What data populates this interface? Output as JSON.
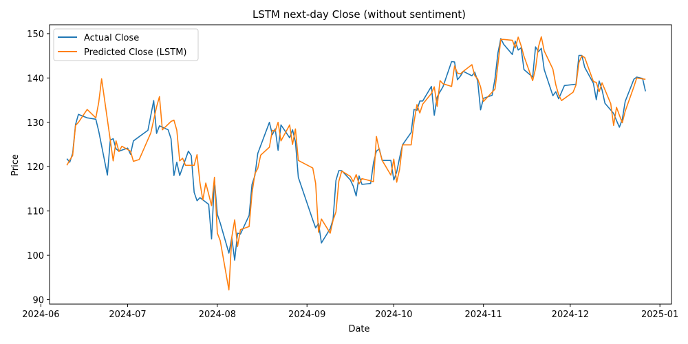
{
  "chart_data": {
    "type": "line",
    "title": "LSTM next-day Close (without sentiment)",
    "xlabel": "Date",
    "ylabel": "Price",
    "x_axis_type": "date",
    "xlim": [
      "2024-06-04",
      "2025-01-05"
    ],
    "ylim": [
      89,
      152
    ],
    "grid": false,
    "legend_position": "top-left",
    "x_tick_labels": [
      "2024-06",
      "2024-07",
      "2024-08",
      "2024-09",
      "2024-10",
      "2024-11",
      "2024-12",
      "2025-01"
    ],
    "x_tick_dates": [
      "2024-06-01",
      "2024-07-01",
      "2024-08-01",
      "2024-09-01",
      "2024-10-01",
      "2024-11-01",
      "2024-12-01",
      "2025-01-01"
    ],
    "y_ticks": [
      90,
      100,
      110,
      120,
      130,
      140,
      150
    ],
    "series": [
      {
        "name": "Actual Close",
        "color": "#1f77b4",
        "points": [
          [
            "2024-06-10",
            121.8
          ],
          [
            "2024-06-11",
            121.0
          ],
          [
            "2024-06-12",
            123.0
          ],
          [
            "2024-06-13",
            129.5
          ],
          [
            "2024-06-14",
            131.8
          ],
          [
            "2024-06-17",
            131.0
          ],
          [
            "2024-06-20",
            130.7
          ],
          [
            "2024-06-21",
            128.0
          ],
          [
            "2024-06-24",
            118.1
          ],
          [
            "2024-06-25",
            126.0
          ],
          [
            "2024-06-26",
            126.3
          ],
          [
            "2024-06-27",
            124.0
          ],
          [
            "2024-06-28",
            123.5
          ],
          [
            "2024-07-01",
            124.2
          ],
          [
            "2024-07-02",
            122.8
          ],
          [
            "2024-07-03",
            125.8
          ],
          [
            "2024-07-08",
            128.2
          ],
          [
            "2024-07-10",
            134.9
          ],
          [
            "2024-07-11",
            127.5
          ],
          [
            "2024-07-12",
            129.2
          ],
          [
            "2024-07-15",
            128.3
          ],
          [
            "2024-07-16",
            126.3
          ],
          [
            "2024-07-17",
            118.0
          ],
          [
            "2024-07-18",
            121.0
          ],
          [
            "2024-07-19",
            118.0
          ],
          [
            "2024-07-22",
            123.5
          ],
          [
            "2024-07-23",
            122.5
          ],
          [
            "2024-07-24",
            114.2
          ],
          [
            "2024-07-25",
            112.3
          ],
          [
            "2024-07-26",
            113.0
          ],
          [
            "2024-07-29",
            111.5
          ],
          [
            "2024-07-30",
            103.7
          ],
          [
            "2024-07-31",
            117.0
          ],
          [
            "2024-08-01",
            109.2
          ],
          [
            "2024-08-02",
            107.3
          ],
          [
            "2024-08-05",
            100.5
          ],
          [
            "2024-08-06",
            104.0
          ],
          [
            "2024-08-07",
            98.9
          ],
          [
            "2024-08-08",
            105.0
          ],
          [
            "2024-08-09",
            104.8
          ],
          [
            "2024-08-12",
            109.0
          ],
          [
            "2024-08-13",
            116.0
          ],
          [
            "2024-08-14",
            118.0
          ],
          [
            "2024-08-15",
            123.0
          ],
          [
            "2024-08-19",
            130.0
          ],
          [
            "2024-08-20",
            127.2
          ],
          [
            "2024-08-21",
            128.5
          ],
          [
            "2024-08-22",
            123.7
          ],
          [
            "2024-08-23",
            129.4
          ],
          [
            "2024-08-26",
            126.5
          ],
          [
            "2024-08-27",
            128.3
          ],
          [
            "2024-08-28",
            125.6
          ],
          [
            "2024-08-29",
            117.6
          ],
          [
            "2024-09-03",
            108.0
          ],
          [
            "2024-09-04",
            106.2
          ],
          [
            "2024-09-05",
            107.2
          ],
          [
            "2024-09-06",
            102.8
          ],
          [
            "2024-09-09",
            106.0
          ],
          [
            "2024-09-10",
            108.1
          ],
          [
            "2024-09-11",
            116.9
          ],
          [
            "2024-09-12",
            119.1
          ],
          [
            "2024-09-13",
            119.1
          ],
          [
            "2024-09-16",
            117.0
          ],
          [
            "2024-09-17",
            115.6
          ],
          [
            "2024-09-18",
            113.4
          ],
          [
            "2024-09-19",
            117.9
          ],
          [
            "2024-09-20",
            116.0
          ],
          [
            "2024-09-23",
            116.2
          ],
          [
            "2024-09-24",
            120.9
          ],
          [
            "2024-09-25",
            123.5
          ],
          [
            "2024-09-26",
            124.0
          ],
          [
            "2024-09-27",
            121.4
          ],
          [
            "2024-09-30",
            121.4
          ],
          [
            "2024-10-01",
            117.0
          ],
          [
            "2024-10-02",
            118.8
          ],
          [
            "2024-10-03",
            122.0
          ],
          [
            "2024-10-04",
            124.9
          ],
          [
            "2024-10-07",
            127.7
          ],
          [
            "2024-10-08",
            132.9
          ],
          [
            "2024-10-09",
            132.7
          ],
          [
            "2024-10-10",
            134.8
          ],
          [
            "2024-10-11",
            134.8
          ],
          [
            "2024-10-14",
            138.1
          ],
          [
            "2024-10-15",
            131.6
          ],
          [
            "2024-10-16",
            135.7
          ],
          [
            "2024-10-17",
            136.9
          ],
          [
            "2024-10-18",
            138.0
          ],
          [
            "2024-10-21",
            143.7
          ],
          [
            "2024-10-22",
            143.6
          ],
          [
            "2024-10-23",
            139.6
          ],
          [
            "2024-10-24",
            140.4
          ],
          [
            "2024-10-25",
            141.5
          ],
          [
            "2024-10-28",
            140.5
          ],
          [
            "2024-10-29",
            141.3
          ],
          [
            "2024-10-30",
            139.3
          ],
          [
            "2024-10-31",
            132.8
          ],
          [
            "2024-11-01",
            135.4
          ],
          [
            "2024-11-04",
            136.1
          ],
          [
            "2024-11-05",
            139.9
          ],
          [
            "2024-11-06",
            145.6
          ],
          [
            "2024-11-07",
            148.9
          ],
          [
            "2024-11-08",
            147.6
          ],
          [
            "2024-11-11",
            145.3
          ],
          [
            "2024-11-12",
            148.3
          ],
          [
            "2024-11-13",
            146.3
          ],
          [
            "2024-11-14",
            146.8
          ],
          [
            "2024-11-15",
            141.9
          ],
          [
            "2024-11-18",
            140.2
          ],
          [
            "2024-11-19",
            147.0
          ],
          [
            "2024-11-20",
            145.9
          ],
          [
            "2024-11-21",
            146.7
          ],
          [
            "2024-11-22",
            141.9
          ],
          [
            "2024-11-25",
            136.0
          ],
          [
            "2024-11-26",
            136.9
          ],
          [
            "2024-11-27",
            135.3
          ],
          [
            "2024-11-29",
            138.3
          ],
          [
            "2024-12-03",
            138.6
          ],
          [
            "2024-12-04",
            145.1
          ],
          [
            "2024-12-05",
            145.1
          ],
          [
            "2024-12-06",
            142.4
          ],
          [
            "2024-12-09",
            138.8
          ],
          [
            "2024-12-10",
            135.1
          ],
          [
            "2024-12-11",
            139.3
          ],
          [
            "2024-12-12",
            137.3
          ],
          [
            "2024-12-13",
            134.3
          ],
          [
            "2024-12-16",
            132.0
          ],
          [
            "2024-12-17",
            130.4
          ],
          [
            "2024-12-18",
            128.9
          ],
          [
            "2024-12-19",
            130.7
          ],
          [
            "2024-12-20",
            134.7
          ],
          [
            "2024-12-23",
            139.7
          ],
          [
            "2024-12-24",
            140.2
          ],
          [
            "2024-12-26",
            139.9
          ],
          [
            "2024-12-27",
            137.0
          ]
        ]
      },
      {
        "name": "Predicted Close (LSTM)",
        "color": "#ff7f0e",
        "points": [
          [
            "2024-06-10",
            120.3
          ],
          [
            "2024-06-11",
            121.5
          ],
          [
            "2024-06-12",
            122.5
          ],
          [
            "2024-06-13",
            129.3
          ],
          [
            "2024-06-14",
            130.0
          ],
          [
            "2024-06-17",
            132.9
          ],
          [
            "2024-06-20",
            131.0
          ],
          [
            "2024-06-21",
            134.5
          ],
          [
            "2024-06-22",
            139.8
          ],
          [
            "2024-06-25",
            126.0
          ],
          [
            "2024-06-26",
            121.3
          ],
          [
            "2024-06-27",
            125.8
          ],
          [
            "2024-06-28",
            123.4
          ],
          [
            "2024-06-29",
            124.6
          ],
          [
            "2024-07-02",
            123.5
          ],
          [
            "2024-07-03",
            121.2
          ],
          [
            "2024-07-05",
            121.6
          ],
          [
            "2024-07-09",
            127.6
          ],
          [
            "2024-07-11",
            133.5
          ],
          [
            "2024-07-12",
            135.8
          ],
          [
            "2024-07-13",
            128.3
          ],
          [
            "2024-07-16",
            130.2
          ],
          [
            "2024-07-17",
            130.5
          ],
          [
            "2024-07-18",
            128.2
          ],
          [
            "2024-07-19",
            121.3
          ],
          [
            "2024-07-20",
            121.9
          ],
          [
            "2024-07-21",
            120.3
          ],
          [
            "2024-07-24",
            120.3
          ],
          [
            "2024-07-25",
            122.7
          ],
          [
            "2024-07-26",
            116.4
          ],
          [
            "2024-07-27",
            112.5
          ],
          [
            "2024-07-28",
            116.3
          ],
          [
            "2024-07-29",
            113.8
          ],
          [
            "2024-07-30",
            111.2
          ],
          [
            "2024-07-31",
            117.6
          ],
          [
            "2024-08-01",
            105.0
          ],
          [
            "2024-08-02",
            103.3
          ],
          [
            "2024-08-05",
            92.2
          ],
          [
            "2024-08-06",
            104.1
          ],
          [
            "2024-08-07",
            108.0
          ],
          [
            "2024-08-08",
            102.0
          ],
          [
            "2024-08-09",
            105.8
          ],
          [
            "2024-08-12",
            106.5
          ],
          [
            "2024-08-13",
            114.0
          ],
          [
            "2024-08-14",
            118.4
          ],
          [
            "2024-08-15",
            119.6
          ],
          [
            "2024-08-16",
            122.6
          ],
          [
            "2024-08-19",
            124.4
          ],
          [
            "2024-08-20",
            128.2
          ],
          [
            "2024-08-21",
            128.0
          ],
          [
            "2024-08-22",
            130.0
          ],
          [
            "2024-08-23",
            125.8
          ],
          [
            "2024-08-26",
            129.4
          ],
          [
            "2024-08-27",
            125.0
          ],
          [
            "2024-08-28",
            128.5
          ],
          [
            "2024-08-29",
            121.4
          ],
          [
            "2024-09-03",
            119.7
          ],
          [
            "2024-09-04",
            116.2
          ],
          [
            "2024-09-05",
            105.2
          ],
          [
            "2024-09-06",
            108.2
          ],
          [
            "2024-09-09",
            105.0
          ],
          [
            "2024-09-10",
            107.9
          ],
          [
            "2024-09-11",
            109.8
          ],
          [
            "2024-09-12",
            116.7
          ],
          [
            "2024-09-13",
            119.0
          ],
          [
            "2024-09-16",
            117.8
          ],
          [
            "2024-09-17",
            116.6
          ],
          [
            "2024-09-18",
            118.2
          ],
          [
            "2024-09-19",
            116.1
          ],
          [
            "2024-09-20",
            117.3
          ],
          [
            "2024-09-23",
            116.8
          ],
          [
            "2024-09-24",
            116.6
          ],
          [
            "2024-09-25",
            126.8
          ],
          [
            "2024-09-26",
            123.8
          ],
          [
            "2024-09-27",
            121.4
          ],
          [
            "2024-09-30",
            118.1
          ],
          [
            "2024-10-01",
            121.7
          ],
          [
            "2024-10-02",
            116.5
          ],
          [
            "2024-10-03",
            119.4
          ],
          [
            "2024-10-04",
            124.9
          ],
          [
            "2024-10-07",
            124.9
          ],
          [
            "2024-10-08",
            130.1
          ],
          [
            "2024-10-09",
            134.0
          ],
          [
            "2024-10-10",
            132.1
          ],
          [
            "2024-10-11",
            134.1
          ],
          [
            "2024-10-14",
            136.5
          ],
          [
            "2024-10-15",
            138.0
          ],
          [
            "2024-10-16",
            133.6
          ],
          [
            "2024-10-17",
            139.4
          ],
          [
            "2024-10-18",
            138.7
          ],
          [
            "2024-10-21",
            138.1
          ],
          [
            "2024-10-22",
            142.7
          ],
          [
            "2024-10-23",
            141.1
          ],
          [
            "2024-10-24",
            140.9
          ],
          [
            "2024-10-25",
            141.5
          ],
          [
            "2024-10-28",
            143.0
          ],
          [
            "2024-10-29",
            140.5
          ],
          [
            "2024-10-30",
            139.8
          ],
          [
            "2024-10-31",
            138.0
          ],
          [
            "2024-11-01",
            134.7
          ],
          [
            "2024-11-04",
            136.8
          ],
          [
            "2024-11-05",
            137.5
          ],
          [
            "2024-11-06",
            143.0
          ],
          [
            "2024-11-07",
            148.7
          ],
          [
            "2024-11-08",
            148.7
          ],
          [
            "2024-11-11",
            148.5
          ],
          [
            "2024-11-12",
            146.8
          ],
          [
            "2024-11-13",
            149.2
          ],
          [
            "2024-11-14",
            147.3
          ],
          [
            "2024-11-15",
            144.9
          ],
          [
            "2024-11-18",
            139.4
          ],
          [
            "2024-11-19",
            142.1
          ],
          [
            "2024-11-20",
            147.0
          ],
          [
            "2024-11-21",
            149.3
          ],
          [
            "2024-11-22",
            146.1
          ],
          [
            "2024-11-25",
            142.0
          ],
          [
            "2024-11-26",
            138.5
          ],
          [
            "2024-11-27",
            136.2
          ],
          [
            "2024-11-28",
            134.9
          ],
          [
            "2024-12-02",
            136.8
          ],
          [
            "2024-12-03",
            138.4
          ],
          [
            "2024-12-04",
            143.5
          ],
          [
            "2024-12-05",
            145.0
          ],
          [
            "2024-12-06",
            144.6
          ],
          [
            "2024-12-09",
            139.2
          ],
          [
            "2024-12-10",
            139.0
          ],
          [
            "2024-12-11",
            136.9
          ],
          [
            "2024-12-12",
            138.9
          ],
          [
            "2024-12-15",
            134.2
          ],
          [
            "2024-12-16",
            129.3
          ],
          [
            "2024-12-17",
            133.4
          ],
          [
            "2024-12-18",
            131.6
          ],
          [
            "2024-12-19",
            129.9
          ],
          [
            "2024-12-20",
            132.5
          ],
          [
            "2024-12-23",
            138.0
          ],
          [
            "2024-12-24",
            140.0
          ],
          [
            "2024-12-27",
            139.7
          ]
        ]
      }
    ]
  }
}
